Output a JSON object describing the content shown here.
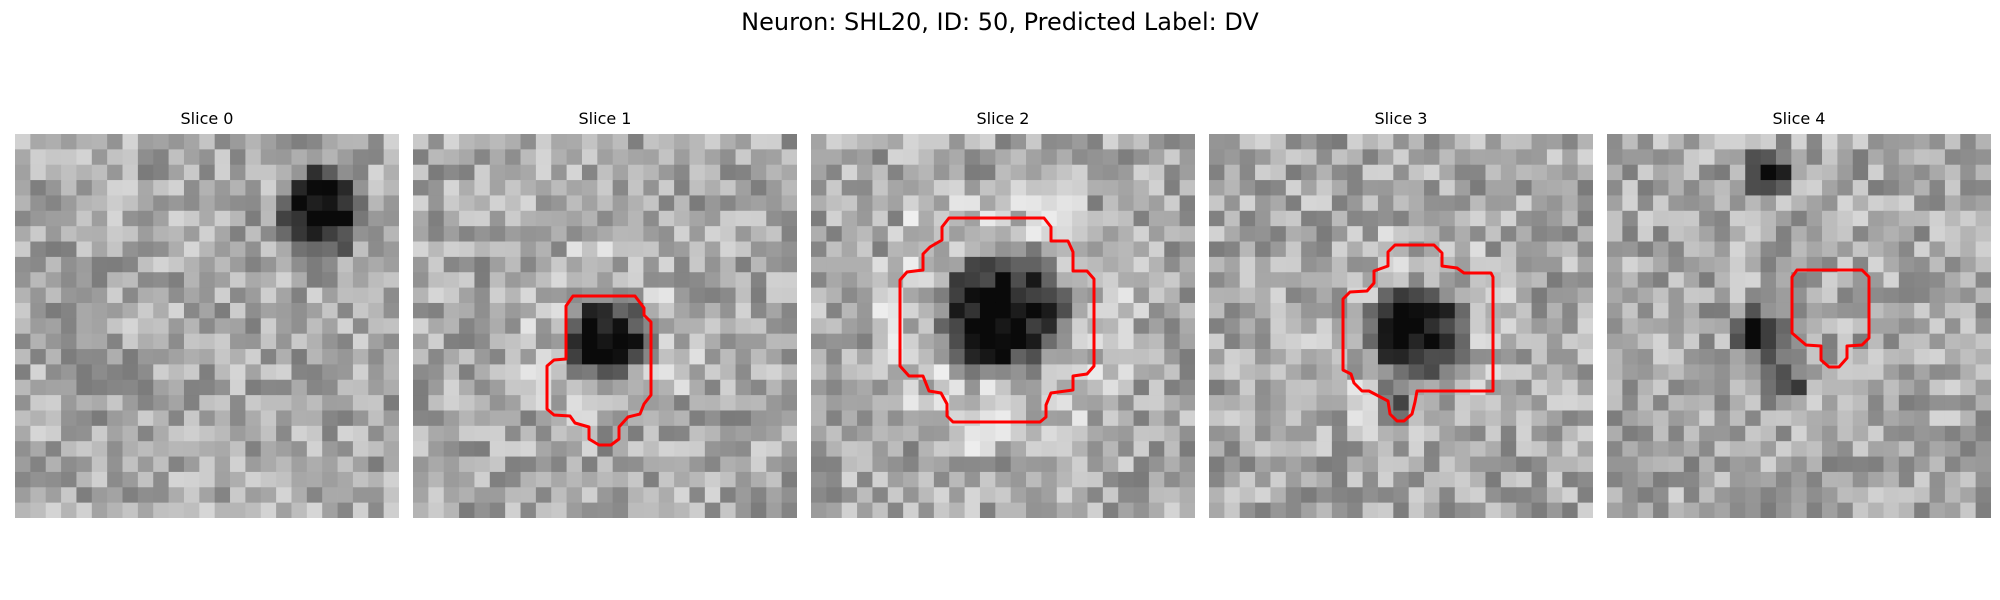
{
  "figure": {
    "title": "Neuron: SHL20, ID: 50, Predicted Label: DV"
  },
  "image_grid_size": 25,
  "colors": {
    "background": "#ffffff",
    "contour": "#ff0000",
    "colormap": "gray"
  },
  "panels": [
    {
      "title": "Slice 0"
    },
    {
      "title": "Slice 1"
    },
    {
      "title": "Slice 2"
    },
    {
      "title": "Slice 3"
    },
    {
      "title": "Slice 4"
    }
  ]
}
